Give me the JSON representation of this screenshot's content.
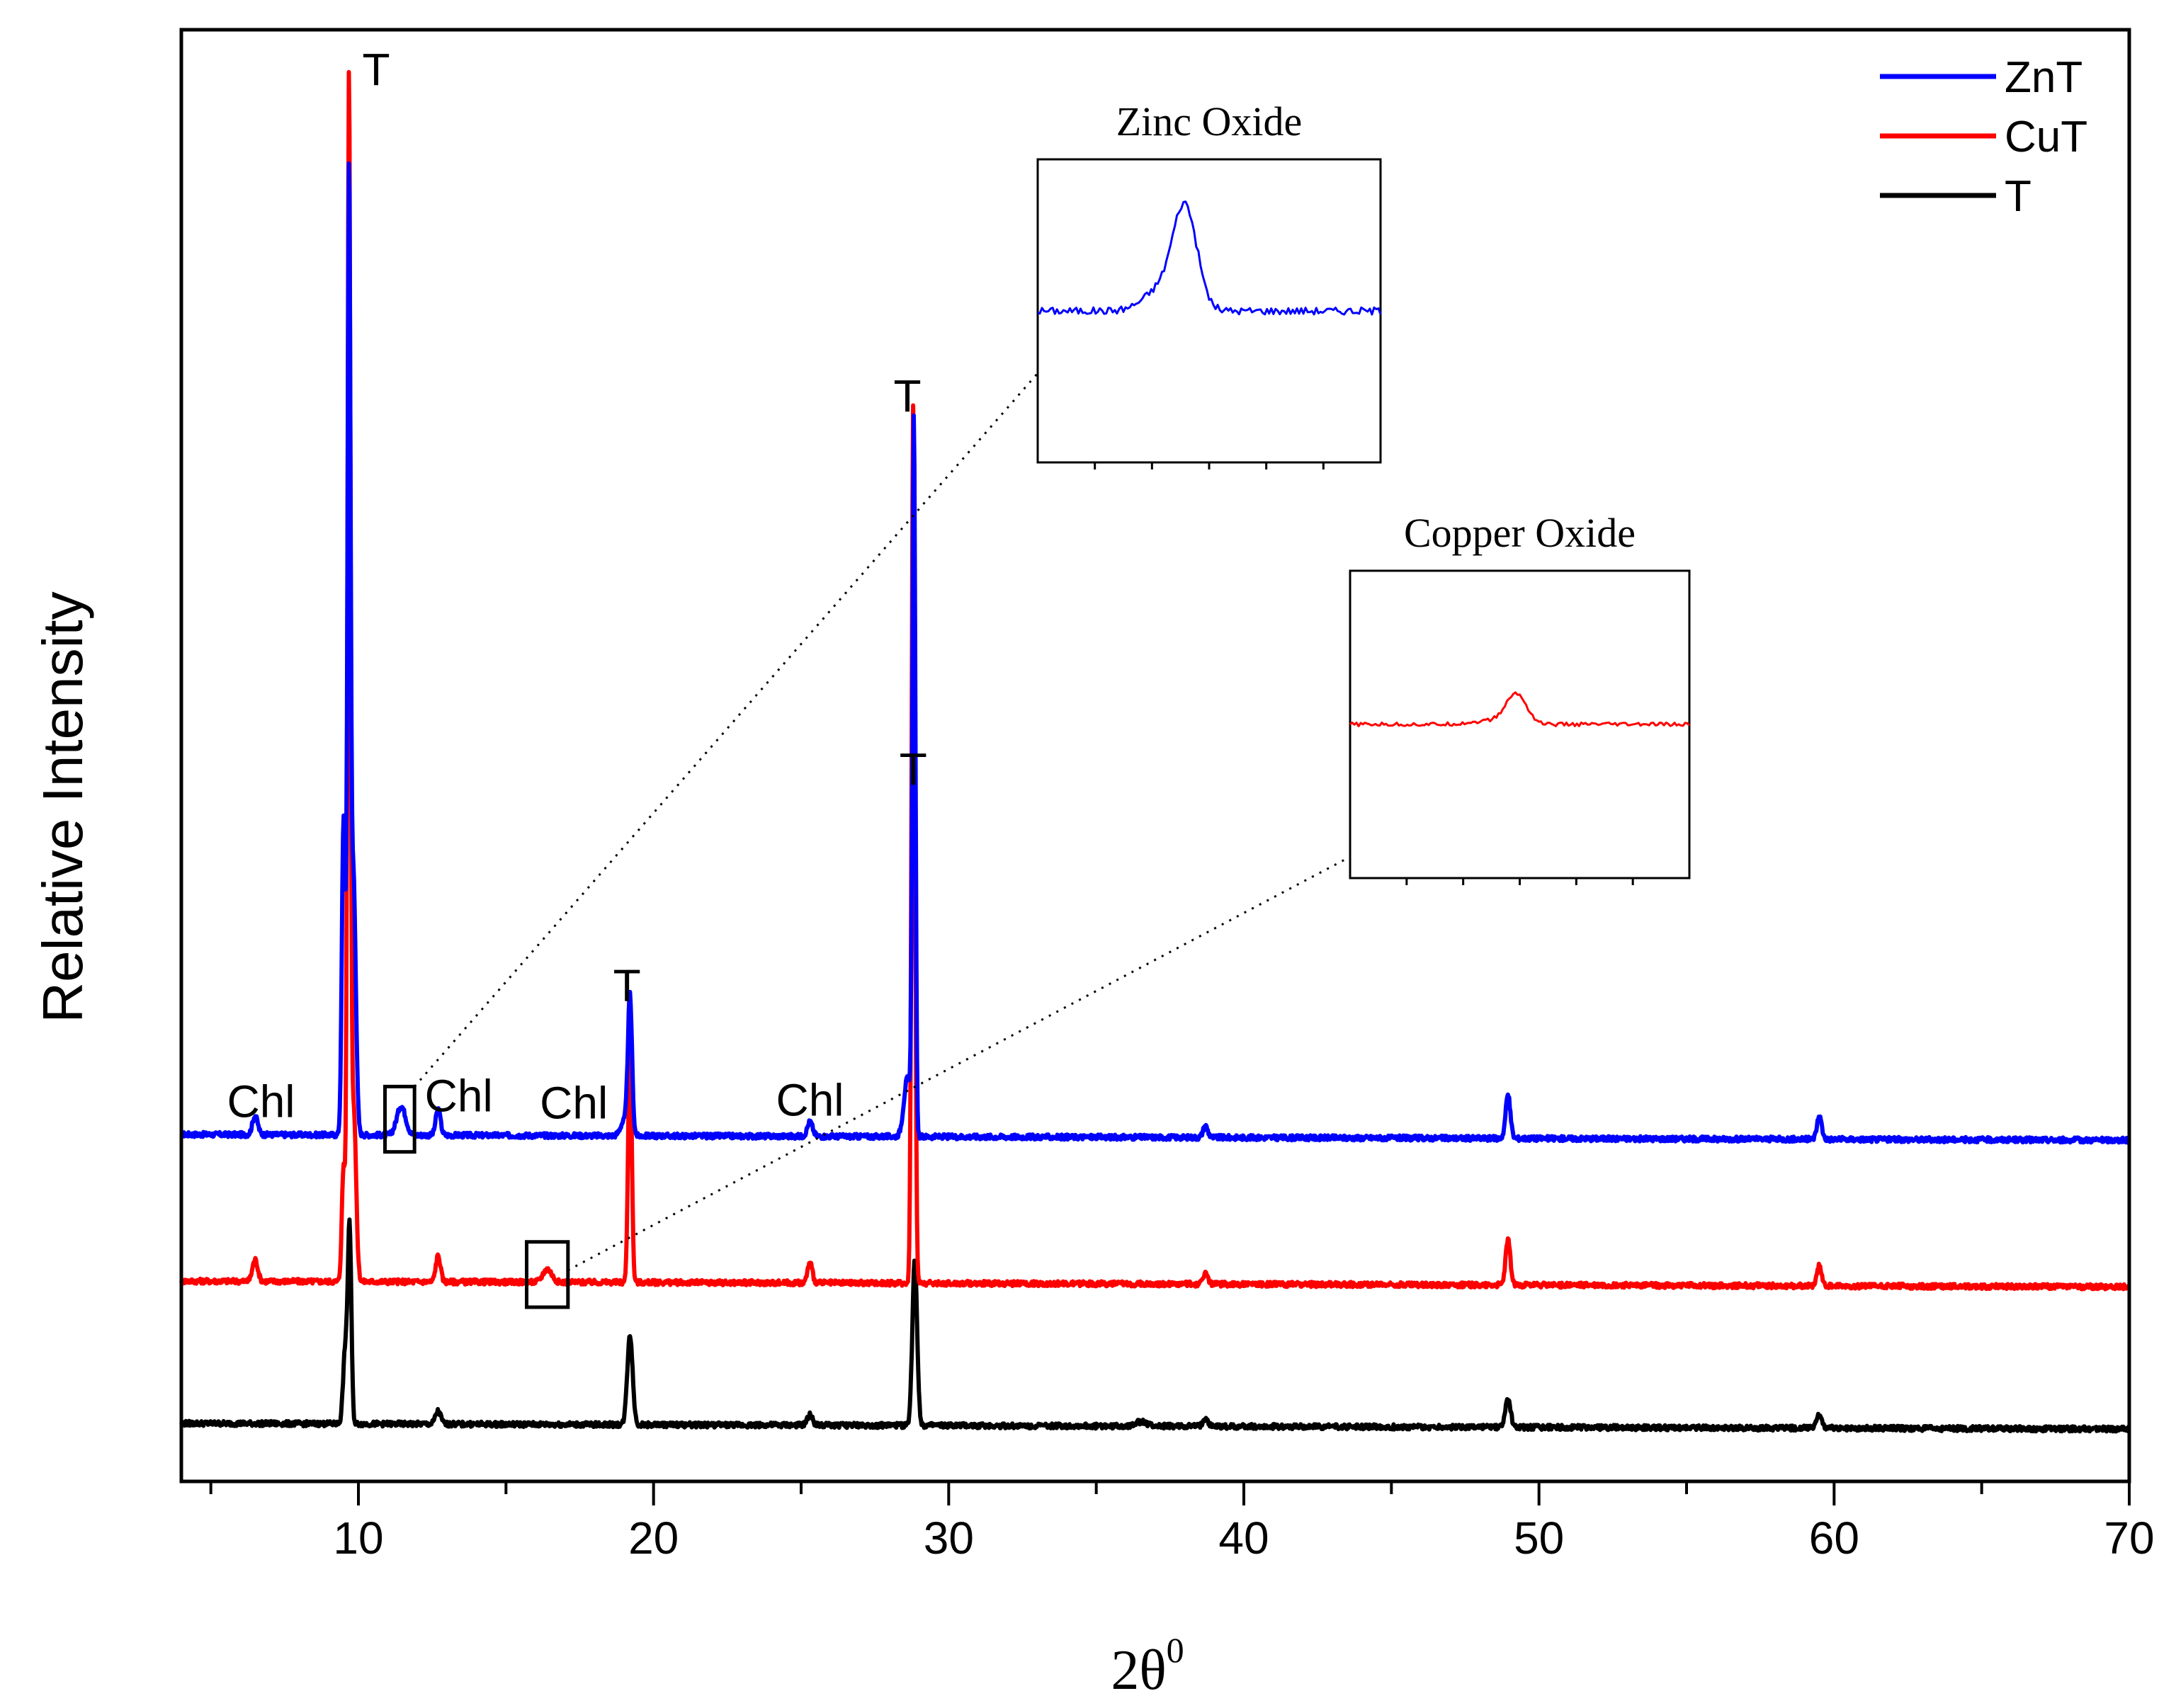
{
  "chart_data": {
    "type": "line",
    "title": "",
    "xlabel": "2θ",
    "xlabel_superscript": "0",
    "ylabel": "Relative Intensity",
    "xlim": [
      4,
      70
    ],
    "ylim": [
      0,
      100
    ],
    "x_ticks": [
      10,
      20,
      30,
      40,
      50,
      60,
      70
    ],
    "x_minor_ticks": [
      5,
      15,
      25,
      35,
      45,
      55,
      65
    ],
    "y_ticks_shown": false,
    "grid": false,
    "legend_position": "top-right",
    "series": [
      {
        "name": "ZnT",
        "color": "#0000ff",
        "baseline": 23.9,
        "peaks": [
          {
            "x": 6.5,
            "h": 1.3,
            "w": 0.09
          },
          {
            "x": 9.5,
            "h": 22,
            "w": 0.06
          },
          {
            "x": 9.68,
            "h": 64,
            "w": 0.05
          },
          {
            "x": 9.83,
            "h": 18,
            "w": 0.08
          },
          {
            "x": 11.45,
            "h": 2.0,
            "w": 0.15
          },
          {
            "x": 12.7,
            "h": 1.8,
            "w": 0.08
          },
          {
            "x": 19.0,
            "h": 1.0,
            "w": 0.12
          },
          {
            "x": 19.2,
            "h": 9.5,
            "w": 0.07
          },
          {
            "x": 25.3,
            "h": 1.0,
            "w": 0.09
          },
          {
            "x": 28.6,
            "h": 4.0,
            "w": 0.12
          },
          {
            "x": 28.82,
            "h": 49,
            "w": 0.05
          },
          {
            "x": 38.7,
            "h": 0.8,
            "w": 0.08
          },
          {
            "x": 48.95,
            "h": 3.0,
            "w": 0.08
          },
          {
            "x": 59.5,
            "h": 1.6,
            "w": 0.08
          }
        ]
      },
      {
        "name": "CuT",
        "color": "#ff0000",
        "baseline": 13.8,
        "peaks": [
          {
            "x": 6.5,
            "h": 1.5,
            "w": 0.09
          },
          {
            "x": 9.5,
            "h": 8,
            "w": 0.06
          },
          {
            "x": 9.68,
            "h": 82,
            "w": 0.05
          },
          {
            "x": 9.84,
            "h": 12,
            "w": 0.08
          },
          {
            "x": 12.7,
            "h": 1.8,
            "w": 0.08
          },
          {
            "x": 16.4,
            "h": 0.9,
            "w": 0.15
          },
          {
            "x": 19.2,
            "h": 17,
            "w": 0.06
          },
          {
            "x": 25.3,
            "h": 1.4,
            "w": 0.08
          },
          {
            "x": 28.8,
            "h": 61,
            "w": 0.055
          },
          {
            "x": 38.7,
            "h": 0.8,
            "w": 0.08
          },
          {
            "x": 48.95,
            "h": 3.1,
            "w": 0.08
          },
          {
            "x": 59.5,
            "h": 1.4,
            "w": 0.08
          }
        ]
      },
      {
        "name": "T",
        "color": "#000000",
        "baseline": 4.0,
        "peaks": [
          {
            "x": 9.55,
            "h": 5,
            "w": 0.07
          },
          {
            "x": 9.7,
            "h": 13.5,
            "w": 0.06
          },
          {
            "x": 12.7,
            "h": 0.9,
            "w": 0.09
          },
          {
            "x": 19.2,
            "h": 6.2,
            "w": 0.09
          },
          {
            "x": 25.3,
            "h": 0.7,
            "w": 0.09
          },
          {
            "x": 28.85,
            "h": 11.5,
            "w": 0.08
          },
          {
            "x": 36.5,
            "h": 0.3,
            "w": 0.2
          },
          {
            "x": 38.7,
            "h": 0.6,
            "w": 0.08
          },
          {
            "x": 48.95,
            "h": 1.9,
            "w": 0.09
          },
          {
            "x": 59.5,
            "h": 0.9,
            "w": 0.09
          }
        ]
      }
    ],
    "annotations": [
      {
        "text": "T",
        "x": 10.6,
        "y": 96.2
      },
      {
        "text": "T",
        "x": 28.6,
        "y": 73.7
      },
      {
        "text": "T",
        "x": 19.1,
        "y": 33.1
      },
      {
        "text": "T",
        "x": 28.8,
        "y": 48.0
      },
      {
        "text": "Chl",
        "x": 6.7,
        "y": 25.1
      },
      {
        "text": "Chl",
        "x": 13.4,
        "y": 25.5
      },
      {
        "text": "Chl",
        "x": 17.3,
        "y": 25.0
      },
      {
        "text": "Chl",
        "x": 25.3,
        "y": 25.2
      }
    ],
    "highlight_boxes": [
      {
        "name": "zinc-oxide",
        "x_range": [
          10.9,
          11.9
        ],
        "y_range": [
          22.7,
          27.2
        ]
      },
      {
        "name": "copper-oxide",
        "x_range": [
          15.7,
          17.1
        ],
        "y_range": [
          12.0,
          16.5
        ]
      }
    ],
    "insets": [
      {
        "title": "Zinc Oxide",
        "color": "#0000ff",
        "tick_count": 5,
        "curve": {
          "baseline": 0.5,
          "peak_center": 0.43,
          "peak_height": 0.33,
          "peak_width": 0.035,
          "shoulder_center": 0.36,
          "shoulder_height": 0.07,
          "shoulder_width": 0.05,
          "noise": 0.012
        }
      },
      {
        "title": "Copper Oxide",
        "color": "#ff0000",
        "tick_count": 5,
        "curve": {
          "baseline": 0.5,
          "peak_center": 0.49,
          "peak_height": 0.095,
          "peak_width": 0.03,
          "shoulder_center": 0.42,
          "shoulder_height": 0.012,
          "shoulder_width": 0.06,
          "noise": 0.006
        }
      }
    ]
  }
}
